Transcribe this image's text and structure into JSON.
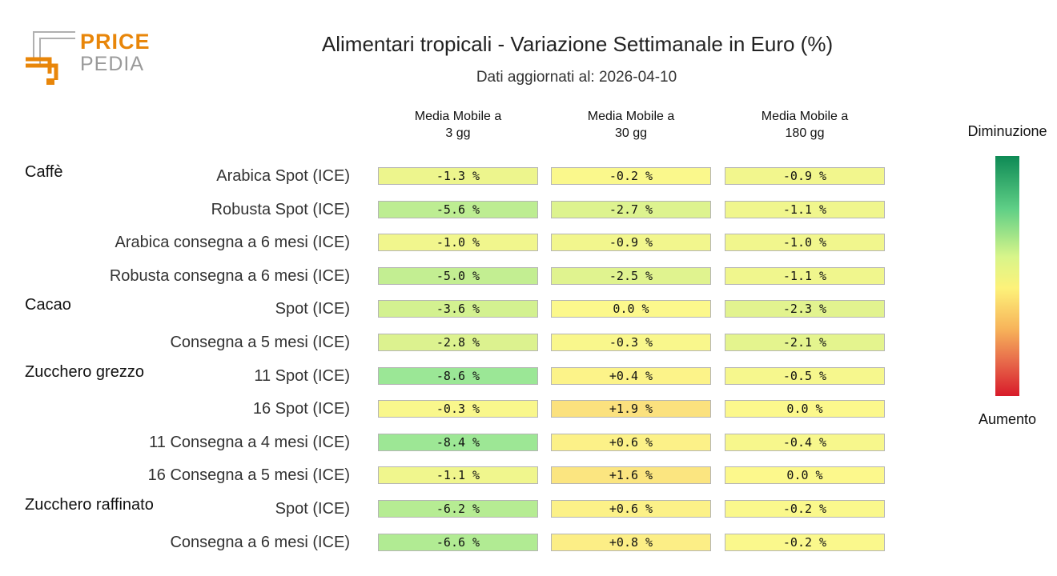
{
  "logo": {
    "word1": "PRICE",
    "word2": "PEDIA"
  },
  "title": "Alimentari tropicali - Variazione Settimanale in Euro (%)",
  "subtitle": "Dati aggiornati al: 2026-04-10",
  "legend": {
    "top": "Diminuzione",
    "bottom": "Aumento"
  },
  "colors": {
    "brand_orange": "#e8860a",
    "brand_grey": "#9a9a9a"
  },
  "chart_data": {
    "type": "table",
    "columns": [
      {
        "line1": "Media Mobile a",
        "line2": "3 gg"
      },
      {
        "line1": "Media Mobile a",
        "line2": "30 gg"
      },
      {
        "line1": "Media Mobile a",
        "line2": "180 gg"
      }
    ],
    "groups": [
      {
        "name": "Caffè",
        "rows": [
          {
            "label": "Arabica Spot (ICE)",
            "values": [
              -1.3,
              -0.2,
              -0.9
            ],
            "text": [
              "-1.3 %",
              "-0.2 %",
              "-0.9 %"
            ]
          },
          {
            "label": "Robusta Spot (ICE)",
            "values": [
              -5.6,
              -2.7,
              -1.1
            ],
            "text": [
              "-5.6 %",
              "-2.7 %",
              "-1.1 %"
            ]
          },
          {
            "label": "Arabica consegna a 6 mesi (ICE)",
            "values": [
              -1.0,
              -0.9,
              -1.0
            ],
            "text": [
              "-1.0 %",
              "-0.9 %",
              "-1.0 %"
            ]
          },
          {
            "label": "Robusta consegna a 6 mesi (ICE)",
            "values": [
              -5.0,
              -2.5,
              -1.1
            ],
            "text": [
              "-5.0 %",
              "-2.5 %",
              "-1.1 %"
            ]
          }
        ]
      },
      {
        "name": "Cacao",
        "rows": [
          {
            "label": "Spot (ICE)",
            "values": [
              -3.6,
              0.0,
              -2.3
            ],
            "text": [
              "-3.6 %",
              "0.0 %",
              "-2.3 %"
            ]
          },
          {
            "label": "Consegna a 5 mesi (ICE)",
            "values": [
              -2.8,
              -0.3,
              -2.1
            ],
            "text": [
              "-2.8 %",
              "-0.3 %",
              "-2.1 %"
            ]
          }
        ]
      },
      {
        "name": "Zucchero grezzo",
        "rows": [
          {
            "label": "11 Spot (ICE)",
            "values": [
              -8.6,
              0.4,
              -0.5
            ],
            "text": [
              "-8.6 %",
              "+0.4 %",
              "-0.5 %"
            ]
          },
          {
            "label": "16 Spot (ICE)",
            "values": [
              -0.3,
              1.9,
              0.0
            ],
            "text": [
              "-0.3 %",
              "+1.9 %",
              "0.0 %"
            ]
          },
          {
            "label": "11 Consegna a 4 mesi (ICE)",
            "values": [
              -8.4,
              0.6,
              -0.4
            ],
            "text": [
              "-8.4 %",
              "+0.6 %",
              "-0.4 %"
            ]
          },
          {
            "label": "16 Consegna a 5 mesi (ICE)",
            "values": [
              -1.1,
              1.6,
              0.0
            ],
            "text": [
              "-1.1 %",
              "+1.6 %",
              "0.0 %"
            ]
          }
        ]
      },
      {
        "name": "Zucchero raffinato",
        "rows": [
          {
            "label": "Spot (ICE)",
            "values": [
              -6.2,
              0.6,
              -0.2
            ],
            "text": [
              "-6.2 %",
              "+0.6 %",
              "-0.2 %"
            ]
          },
          {
            "label": "Consegna a 6 mesi (ICE)",
            "values": [
              -6.6,
              0.8,
              -0.2
            ],
            "text": [
              "-6.6 %",
              "+0.8 %",
              "-0.2 %"
            ]
          }
        ]
      }
    ]
  }
}
